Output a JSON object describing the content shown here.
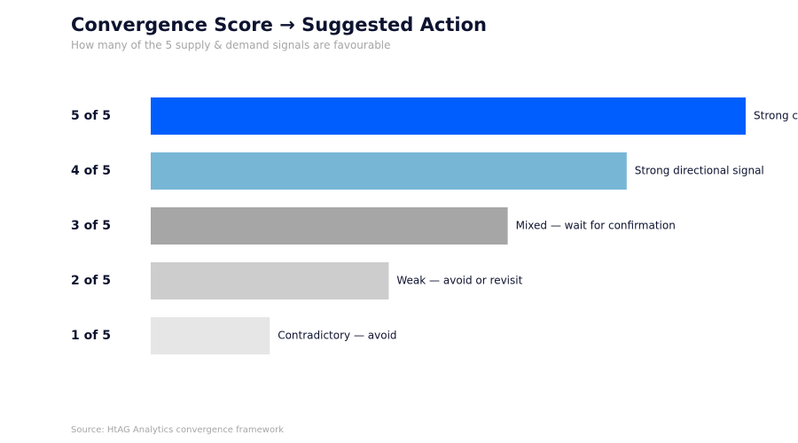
{
  "chart_data": {
    "type": "bar",
    "orientation": "horizontal",
    "title": "Convergence Score → Suggested Action",
    "subtitle": "How many of the 5 supply & demand signals are favourable",
    "source": "Source: HtAG Analytics convergence framework",
    "categories": [
      "5 of 5",
      "4 of 5",
      "3 of 5",
      "2 of 5",
      "1 of 5"
    ],
    "values": [
      5,
      4,
      3,
      2,
      1
    ],
    "labels": [
      "Strong convergence — act",
      "Strong directional signal",
      "Mixed — wait for confirmation",
      "Weak — avoid or revisit",
      "Contradictory — avoid"
    ],
    "colors": [
      "#005eff",
      "#78b6d6",
      "#a6a6a6",
      "#cdcdcd",
      "#e6e6e6"
    ],
    "xlim": [
      0,
      5
    ],
    "grid": false,
    "legend": "none"
  }
}
